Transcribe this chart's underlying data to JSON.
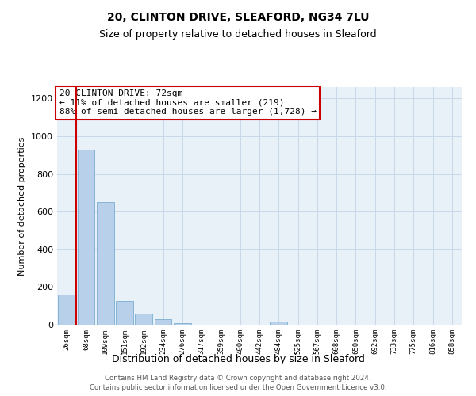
{
  "title": "20, CLINTON DRIVE, SLEAFORD, NG34 7LU",
  "subtitle": "Size of property relative to detached houses in Sleaford",
  "xlabel": "Distribution of detached houses by size in Sleaford",
  "ylabel": "Number of detached properties",
  "bar_labels": [
    "26sqm",
    "68sqm",
    "109sqm",
    "151sqm",
    "192sqm",
    "234sqm",
    "276sqm",
    "317sqm",
    "359sqm",
    "400sqm",
    "442sqm",
    "484sqm",
    "525sqm",
    "567sqm",
    "608sqm",
    "650sqm",
    "692sqm",
    "733sqm",
    "775sqm",
    "816sqm",
    "858sqm"
  ],
  "bar_values": [
    160,
    930,
    650,
    125,
    60,
    28,
    10,
    0,
    0,
    0,
    0,
    15,
    0,
    0,
    0,
    0,
    0,
    0,
    0,
    0,
    0
  ],
  "bar_color": "#b8d0ea",
  "bar_edge_color": "#7aadd4",
  "ylim": [
    0,
    1260
  ],
  "yticks": [
    0,
    200,
    400,
    600,
    800,
    1000,
    1200
  ],
  "vline_color": "#cc0000",
  "annotation_title": "20 CLINTON DRIVE: 72sqm",
  "annotation_line1": "← 11% of detached houses are smaller (219)",
  "annotation_line2": "88% of semi-detached houses are larger (1,728) →",
  "annotation_box_color": "#cc0000",
  "footer_line1": "Contains HM Land Registry data © Crown copyright and database right 2024.",
  "footer_line2": "Contains public sector information licensed under the Open Government Licence v3.0.",
  "background_color": "#ffffff",
  "plot_bg_color": "#e8f0f8",
  "grid_color": "#c8d8e8"
}
